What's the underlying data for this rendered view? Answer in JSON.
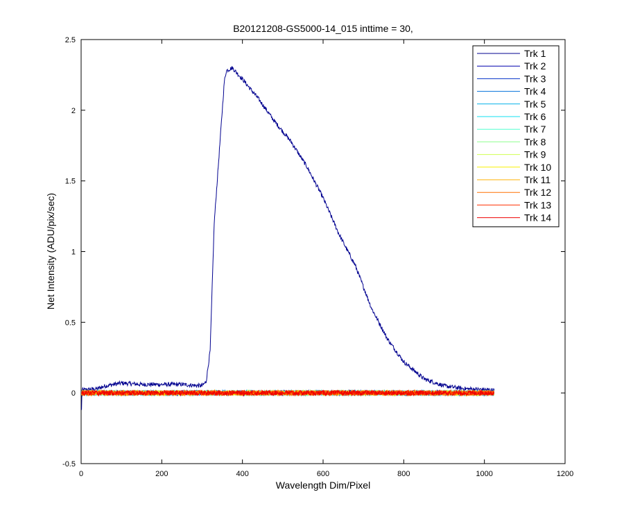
{
  "chart_data": {
    "type": "line",
    "title": "B20121208-GS5000-14_015 inttime = 30,",
    "xlabel": "Wavelength Dim/Pixel",
    "ylabel": "Net Intensity (ADU/pix/sec)",
    "xlim": [
      0,
      1200
    ],
    "ylim": [
      -0.5,
      2.5
    ],
    "xticks": [
      "0",
      "200",
      "400",
      "600",
      "800",
      "1000",
      "1200"
    ],
    "yticks": [
      "-0.5",
      "0",
      "0.5",
      "1",
      "1.5",
      "2",
      "2.5"
    ],
    "grid": false,
    "legend_position": "top-right",
    "x_range": [
      1,
      1024
    ],
    "series": [
      {
        "name": "Trk 1",
        "color": "#00008f",
        "profile": [
          [
            1,
            0.02
          ],
          [
            40,
            0.03
          ],
          [
            60,
            0.05
          ],
          [
            100,
            0.07
          ],
          [
            150,
            0.06
          ],
          [
            200,
            0.06
          ],
          [
            250,
            0.06
          ],
          [
            300,
            0.05
          ],
          [
            310,
            0.08
          ],
          [
            320,
            0.3
          ],
          [
            330,
            1.2
          ],
          [
            345,
            1.8
          ],
          [
            355,
            2.2
          ],
          [
            360,
            2.28
          ],
          [
            375,
            2.3
          ],
          [
            400,
            2.22
          ],
          [
            440,
            2.08
          ],
          [
            480,
            1.92
          ],
          [
            520,
            1.78
          ],
          [
            560,
            1.6
          ],
          [
            600,
            1.38
          ],
          [
            640,
            1.12
          ],
          [
            680,
            0.9
          ],
          [
            720,
            0.6
          ],
          [
            760,
            0.38
          ],
          [
            800,
            0.22
          ],
          [
            850,
            0.1
          ],
          [
            900,
            0.05
          ],
          [
            950,
            0.03
          ],
          [
            1024,
            0.02
          ]
        ],
        "noise": 0.015
      },
      {
        "name": "Trk 2",
        "color": "#0000ad",
        "profile": [
          [
            1,
            0.0
          ],
          [
            1024,
            0.0
          ]
        ],
        "noise": 0.018
      },
      {
        "name": "Trk 3",
        "color": "#0030c8",
        "profile": [
          [
            1,
            0.0
          ],
          [
            1024,
            0.0
          ]
        ],
        "noise": 0.018
      },
      {
        "name": "Trk 4",
        "color": "#0070d9",
        "profile": [
          [
            1,
            0.0
          ],
          [
            1024,
            0.0
          ]
        ],
        "noise": 0.018
      },
      {
        "name": "Trk 5",
        "color": "#00b0e8",
        "profile": [
          [
            1,
            0.0
          ],
          [
            1024,
            0.0
          ]
        ],
        "noise": 0.018
      },
      {
        "name": "Trk 6",
        "color": "#10e0f0",
        "profile": [
          [
            1,
            0.0
          ],
          [
            1024,
            0.0
          ]
        ],
        "noise": 0.018
      },
      {
        "name": "Trk 7",
        "color": "#50ffcf",
        "profile": [
          [
            1,
            0.0
          ],
          [
            1024,
            0.0
          ]
        ],
        "noise": 0.018
      },
      {
        "name": "Trk 8",
        "color": "#90ff90",
        "profile": [
          [
            1,
            0.0
          ],
          [
            1024,
            0.0
          ]
        ],
        "noise": 0.018
      },
      {
        "name": "Trk 9",
        "color": "#d0ff50",
        "profile": [
          [
            1,
            0.0
          ],
          [
            1024,
            0.0
          ]
        ],
        "noise": 0.018
      },
      {
        "name": "Trk 10",
        "color": "#f8f000",
        "profile": [
          [
            1,
            0.0
          ],
          [
            1024,
            0.0
          ]
        ],
        "noise": 0.018
      },
      {
        "name": "Trk 11",
        "color": "#ffb000",
        "profile": [
          [
            1,
            0.0
          ],
          [
            1024,
            0.0
          ]
        ],
        "noise": 0.018
      },
      {
        "name": "Trk 12",
        "color": "#ff7000",
        "profile": [
          [
            1,
            0.0
          ],
          [
            1024,
            0.0
          ]
        ],
        "noise": 0.018
      },
      {
        "name": "Trk 13",
        "color": "#ff3000",
        "profile": [
          [
            1,
            0.0
          ],
          [
            1024,
            0.0
          ]
        ],
        "noise": 0.018
      },
      {
        "name": "Trk 14",
        "color": "#ee0000",
        "profile": [
          [
            1,
            0.0
          ],
          [
            1024,
            0.0
          ]
        ],
        "noise": 0.018
      }
    ]
  }
}
